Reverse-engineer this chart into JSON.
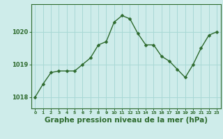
{
  "x": [
    0,
    1,
    2,
    3,
    4,
    5,
    6,
    7,
    8,
    9,
    10,
    11,
    12,
    13,
    14,
    15,
    16,
    17,
    18,
    19,
    20,
    21,
    22,
    23
  ],
  "y": [
    1018.0,
    1018.4,
    1018.75,
    1018.8,
    1018.8,
    1018.8,
    1019.0,
    1019.2,
    1019.6,
    1019.7,
    1020.3,
    1020.5,
    1020.4,
    1019.95,
    1019.6,
    1019.6,
    1019.25,
    1019.1,
    1018.85,
    1018.6,
    1019.0,
    1019.5,
    1019.9,
    1020.0
  ],
  "line_color": "#2d6a2d",
  "marker": "D",
  "marker_size": 2.5,
  "bg_color": "#ceecea",
  "grid_color": "#a8d8d5",
  "axis_color": "#2d6a2d",
  "tick_color": "#2d6a2d",
  "xlabel": "Graphe pression niveau de la mer (hPa)",
  "xlabel_fontsize": 7.5,
  "yticks": [
    1018,
    1019,
    1020
  ],
  "ylim": [
    1017.65,
    1020.85
  ],
  "xlim": [
    -0.5,
    23.5
  ],
  "title": "",
  "linewidth": 1.0
}
